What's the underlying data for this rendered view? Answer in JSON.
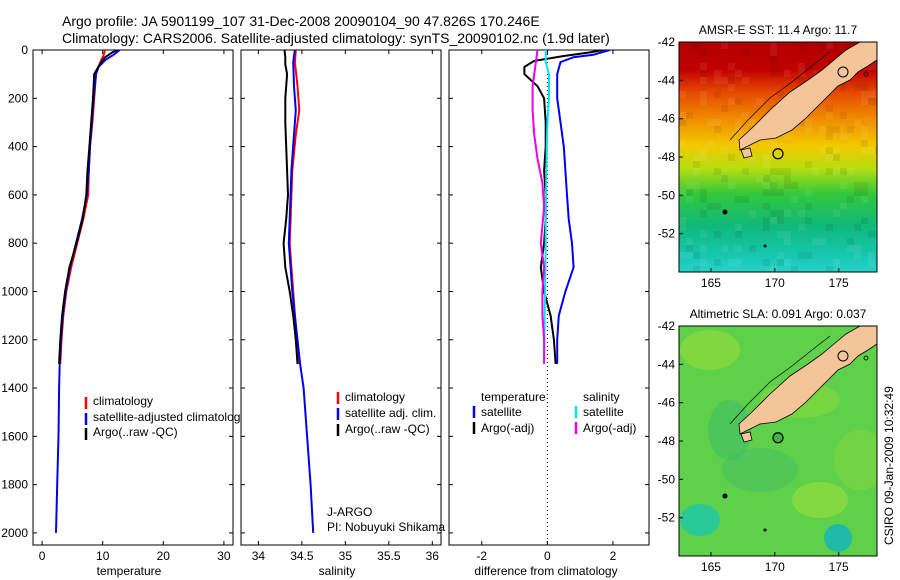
{
  "header": {
    "line1": "Argo profile: JA 5901199_107 31-Dec-2008 20090104_90 47.826S 170.246E",
    "line2": "Climatology: CARS2006. Satellite-adjusted climatology: synTS_20090102.nc (1.9d later)"
  },
  "colors": {
    "climatology": "#ff0000",
    "satellite": "#0000ee",
    "argo": "#000000",
    "salinity_satellite": "#00e5ee",
    "salinity_argo": "#ee00ee",
    "land": "#f5c59a"
  },
  "chart_data": [
    {
      "type": "line",
      "id": "temperature",
      "xlabel": "temperature",
      "xlim": [
        -1.5,
        31.5
      ],
      "ylim": [
        2050,
        0
      ],
      "xticks": [
        0,
        10,
        20,
        30
      ],
      "yticks": [
        0,
        200,
        400,
        600,
        800,
        1000,
        1200,
        1400,
        1600,
        1800,
        2000
      ],
      "legend": [
        "climatology",
        "satellite-adjusted climatology",
        "Argo(..raw -QC)"
      ],
      "series": [
        {
          "name": "climatology",
          "color": "#ff0000",
          "points": [
            [
              10.4,
              0
            ],
            [
              10.1,
              25
            ],
            [
              9.6,
              50
            ],
            [
              8.9,
              100
            ],
            [
              8.6,
              200
            ],
            [
              8.3,
              300
            ],
            [
              7.9,
              400
            ],
            [
              7.7,
              500
            ],
            [
              7.6,
              600
            ],
            [
              6.8,
              700
            ],
            [
              5.8,
              800
            ],
            [
              4.8,
              900
            ],
            [
              4.0,
              1000
            ],
            [
              3.5,
              1100
            ],
            [
              3.2,
              1200
            ],
            [
              3.0,
              1300
            ]
          ]
        },
        {
          "name": "satellite-adjusted climatology",
          "color": "#0000ee",
          "points": [
            [
              12.8,
              0
            ],
            [
              11.8,
              20
            ],
            [
              10.5,
              40
            ],
            [
              9.3,
              70
            ],
            [
              8.9,
              100
            ],
            [
              8.5,
              200
            ],
            [
              8.2,
              300
            ],
            [
              7.9,
              400
            ],
            [
              7.7,
              500
            ],
            [
              7.4,
              600
            ],
            [
              6.6,
              700
            ],
            [
              5.6,
              800
            ],
            [
              4.6,
              900
            ],
            [
              3.9,
              1000
            ],
            [
              3.4,
              1100
            ],
            [
              3.1,
              1200
            ],
            [
              2.9,
              1300
            ],
            [
              2.8,
              1400
            ],
            [
              2.7,
              1600
            ],
            [
              2.5,
              1800
            ],
            [
              2.3,
              2000
            ]
          ]
        },
        {
          "name": "Argo(..raw -QC)",
          "color": "#000000",
          "points": [
            [
              12.4,
              0
            ],
            [
              11.6,
              10
            ],
            [
              10.4,
              30
            ],
            [
              9.5,
              60
            ],
            [
              8.6,
              100
            ],
            [
              8.4,
              200
            ],
            [
              8.1,
              300
            ],
            [
              7.8,
              400
            ],
            [
              7.5,
              500
            ],
            [
              7.3,
              600
            ],
            [
              6.7,
              700
            ],
            [
              5.7,
              800
            ],
            [
              4.5,
              900
            ],
            [
              3.8,
              1000
            ],
            [
              3.3,
              1100
            ],
            [
              3.0,
              1200
            ],
            [
              2.8,
              1300
            ]
          ]
        }
      ]
    },
    {
      "type": "line",
      "id": "salinity",
      "xlabel": "salinity",
      "xlim": [
        33.8,
        36.1
      ],
      "ylim": [
        2050,
        0
      ],
      "xticks": [
        34,
        34.5,
        35,
        35.5,
        36
      ],
      "legend": [
        "climatology",
        "satellite adj. clim.",
        "Argo(..raw -QC)"
      ],
      "series": [
        {
          "name": "climatology",
          "color": "#ff0000",
          "points": [
            [
              34.43,
              0
            ],
            [
              34.42,
              50
            ],
            [
              34.45,
              150
            ],
            [
              34.47,
              250
            ],
            [
              34.43,
              350
            ],
            [
              34.39,
              500
            ],
            [
              34.38,
              600
            ],
            [
              34.37,
              700
            ],
            [
              34.36,
              800
            ],
            [
              34.38,
              900
            ],
            [
              34.4,
              1000
            ],
            [
              34.42,
              1100
            ],
            [
              34.44,
              1200
            ],
            [
              34.47,
              1300
            ]
          ]
        },
        {
          "name": "satellite adj. clim.",
          "color": "#0000ee",
          "points": [
            [
              34.42,
              0
            ],
            [
              34.4,
              50
            ],
            [
              34.41,
              150
            ],
            [
              34.43,
              250
            ],
            [
              34.41,
              350
            ],
            [
              34.38,
              500
            ],
            [
              34.37,
              600
            ],
            [
              34.36,
              700
            ],
            [
              34.35,
              800
            ],
            [
              34.37,
              900
            ],
            [
              34.39,
              1000
            ],
            [
              34.42,
              1100
            ],
            [
              34.45,
              1200
            ],
            [
              34.48,
              1300
            ],
            [
              34.52,
              1400
            ],
            [
              34.56,
              1600
            ],
            [
              34.6,
              1800
            ],
            [
              34.63,
              2000
            ]
          ]
        },
        {
          "name": "Argo(..raw -QC)",
          "color": "#000000",
          "points": [
            [
              34.3,
              0
            ],
            [
              34.31,
              30
            ],
            [
              34.31,
              60
            ],
            [
              34.33,
              100
            ],
            [
              34.31,
              200
            ],
            [
              34.31,
              300
            ],
            [
              34.32,
              400
            ],
            [
              34.33,
              500
            ],
            [
              34.34,
              600
            ],
            [
              34.32,
              700
            ],
            [
              34.29,
              800
            ],
            [
              34.31,
              900
            ],
            [
              34.36,
              1000
            ],
            [
              34.4,
              1100
            ],
            [
              34.43,
              1200
            ],
            [
              34.45,
              1300
            ]
          ]
        }
      ]
    },
    {
      "type": "line",
      "id": "difference",
      "xlabel": "difference from climatology",
      "xlim": [
        -3,
        3.1
      ],
      "ylim": [
        2050,
        0
      ],
      "xticks": [
        -2,
        0,
        2
      ],
      "zero_line": 0,
      "legend_groups": {
        "temperature": {
          "title": "temperature",
          "items": [
            "satellite",
            "Argo(-adj)"
          ]
        },
        "salinity": {
          "title": "salinity",
          "items": [
            "satellite",
            "Argo(-adj)"
          ]
        }
      },
      "series": [
        {
          "name": "temperature satellite",
          "color": "#0000ee",
          "points": [
            [
              1.9,
              0
            ],
            [
              1.4,
              20
            ],
            [
              0.8,
              30
            ],
            [
              0.4,
              50
            ],
            [
              0.3,
              100
            ],
            [
              0.3,
              200
            ],
            [
              0.4,
              300
            ],
            [
              0.5,
              400
            ],
            [
              0.55,
              500
            ],
            [
              0.6,
              600
            ],
            [
              0.65,
              700
            ],
            [
              0.75,
              800
            ],
            [
              0.8,
              900
            ],
            [
              0.55,
              1000
            ],
            [
              0.35,
              1100
            ],
            [
              0.3,
              1200
            ],
            [
              0.3,
              1300
            ]
          ]
        },
        {
          "name": "temperature Argo(-adj)",
          "color": "#000000",
          "points": [
            [
              1.7,
              0
            ],
            [
              1.3,
              10
            ],
            [
              0.5,
              25
            ],
            [
              -0.4,
              45
            ],
            [
              -0.7,
              70
            ],
            [
              -0.7,
              100
            ],
            [
              -0.3,
              150
            ],
            [
              -0.1,
              200
            ],
            [
              -0.05,
              300
            ],
            [
              -0.05,
              400
            ],
            [
              -0.1,
              500
            ],
            [
              -0.05,
              600
            ],
            [
              -0.05,
              700
            ],
            [
              -0.1,
              800
            ],
            [
              -0.2,
              900
            ],
            [
              -0.1,
              1000
            ],
            [
              0.1,
              1100
            ],
            [
              0.2,
              1200
            ],
            [
              0.25,
              1300
            ]
          ]
        },
        {
          "name": "salinity satellite",
          "color": "#00e5ee",
          "points": [
            [
              -0.05,
              0
            ],
            [
              -0.05,
              50
            ],
            [
              0.05,
              100
            ],
            [
              0.05,
              200
            ],
            [
              0.0,
              300
            ],
            [
              -0.02,
              400
            ],
            [
              -0.03,
              500
            ],
            [
              -0.04,
              600
            ],
            [
              -0.05,
              700
            ],
            [
              -0.05,
              800
            ],
            [
              -0.06,
              900
            ],
            [
              -0.07,
              1000
            ],
            [
              -0.08,
              1100
            ],
            [
              -0.09,
              1200
            ],
            [
              -0.1,
              1300
            ]
          ]
        },
        {
          "name": "salinity Argo(-adj)",
          "color": "#ee00ee",
          "points": [
            [
              -0.3,
              0
            ],
            [
              -0.35,
              50
            ],
            [
              -0.45,
              150
            ],
            [
              -0.45,
              250
            ],
            [
              -0.4,
              350
            ],
            [
              -0.3,
              450
            ],
            [
              -0.15,
              550
            ],
            [
              -0.1,
              650
            ],
            [
              -0.2,
              800
            ],
            [
              -0.1,
              900
            ],
            [
              -0.15,
              1000
            ],
            [
              -0.15,
              1100
            ],
            [
              -0.1,
              1200
            ],
            [
              -0.1,
              1300
            ]
          ]
        }
      ]
    },
    {
      "type": "heatmap",
      "id": "sst-map",
      "title": "AMSR-E SST: 11.4 Argo: 11.7",
      "xlim": [
        162.5,
        178
      ],
      "ylim": [
        -54,
        -42
      ],
      "xticks": [
        165,
        170,
        175
      ],
      "yticks": [
        -42,
        -44,
        -46,
        -48,
        -50,
        -52
      ],
      "argo_position": [
        170.25,
        -47.83
      ]
    },
    {
      "type": "heatmap",
      "id": "sla-map",
      "title": "Altimetric SLA: 0.091 Argo: 0.037",
      "xlim": [
        162.5,
        178
      ],
      "ylim": [
        -54,
        -42
      ],
      "xticks": [
        165,
        170,
        175
      ],
      "yticks": [
        -42,
        -44,
        -46,
        -48,
        -50,
        -52
      ],
      "argo_position": [
        170.25,
        -47.83
      ]
    }
  ],
  "footer": {
    "pi_label1": "J-ARGO",
    "pi_label2": "PI: Nobuyuki Shikama",
    "credit": "CSIRO 09-Jan-2009 10:32:49"
  },
  "diff_legend": {
    "temp_title": "temperature",
    "sal_title": "salinity",
    "sat": "satellite",
    "argo": "Argo(-adj)"
  }
}
